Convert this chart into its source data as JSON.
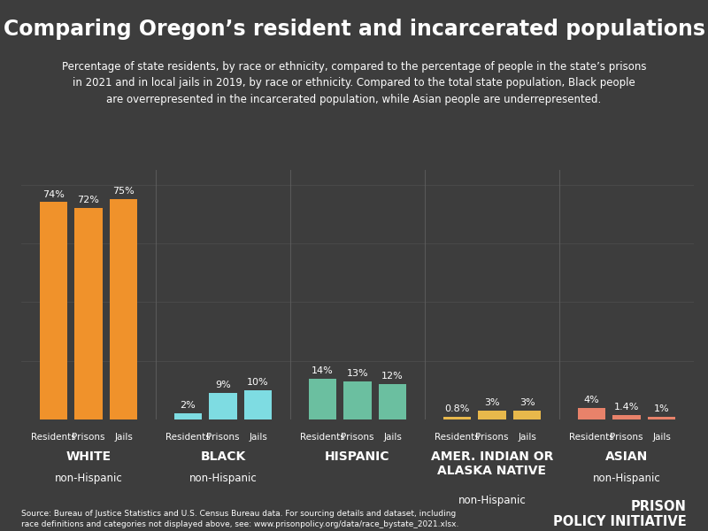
{
  "title": "Comparing Oregon’s resident and incarcerated populations",
  "subtitle": "Percentage of state residents, by race or ethnicity, compared to the percentage of people in the state’s prisons\nin 2021 and in local jails in 2019, by race or ethnicity. Compared to the total state population, Black people\nare overrepresented in the incarcerated population, while Asian people are underrepresented.",
  "source": "Source: Bureau of Justice Statistics and U.S. Census Bureau data. For sourcing details and dataset, including\nrace definitions and categories not displayed above, see: www.prisonpolicy.org/data/race_bystate_2021.xlsx.",
  "background_color": "#3d3d3d",
  "groups": [
    {
      "label": "WHITE",
      "sublabel": "non-Hispanic",
      "values": [
        74,
        72,
        75
      ],
      "pct_labels": [
        "74%",
        "72%",
        "75%"
      ],
      "color": "#f0922b"
    },
    {
      "label": "BLACK",
      "sublabel": "non-Hispanic",
      "values": [
        2,
        9,
        10
      ],
      "pct_labels": [
        "2%",
        "9%",
        "10%"
      ],
      "color": "#7edce2"
    },
    {
      "label": "HISPANIC",
      "sublabel": "",
      "values": [
        14,
        13,
        12
      ],
      "pct_labels": [
        "14%",
        "13%",
        "12%"
      ],
      "color": "#6bbfa0"
    },
    {
      "label": "AMER. INDIAN OR\nALASKA NATIVE",
      "sublabel": "non-Hispanic",
      "values": [
        0.8,
        3,
        3
      ],
      "pct_labels": [
        "0.8%",
        "3%",
        "3%"
      ],
      "color": "#e8b84b"
    },
    {
      "label": "ASIAN",
      "sublabel": "non-Hispanic",
      "values": [
        4,
        1.4,
        1
      ],
      "pct_labels": [
        "4%",
        "1.4%",
        "1%"
      ],
      "color": "#e8826a"
    }
  ],
  "bar_sublabels": [
    "Residents",
    "Prisons",
    "Jails"
  ],
  "ylim": [
    0,
    85
  ],
  "text_color": "#ffffff",
  "divider_color": "#606060",
  "grid_color": "#555555",
  "title_fontsize": 17,
  "subtitle_fontsize": 8.5,
  "bar_label_fontsize": 7.5,
  "pct_fontsize": 8,
  "group_label_fontsize": 10,
  "sublabel_fontsize": 8.5,
  "source_fontsize": 6.5
}
